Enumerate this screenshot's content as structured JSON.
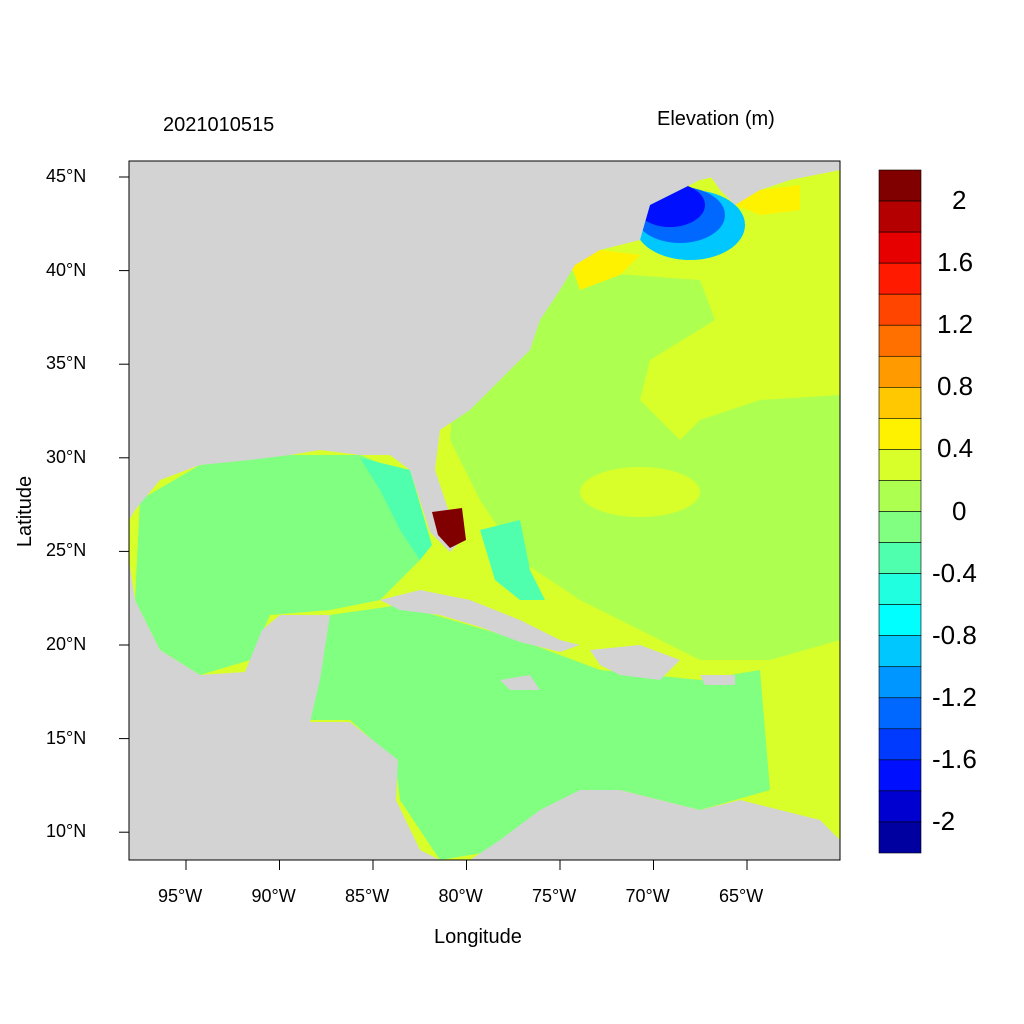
{
  "title_left": "2021010515",
  "title_right": "Elevation (m)",
  "xlabel": "Longitude",
  "ylabel": "Latitude",
  "x_ticks": [
    "95°W",
    "90°W",
    "85°W",
    "80°W",
    "75°W",
    "70°W",
    "65°W"
  ],
  "y_ticks": [
    "45°N",
    "40°N",
    "35°N",
    "30°N",
    "25°N",
    "20°N",
    "15°N",
    "10°N"
  ],
  "colors": {
    "land": "#d3d3d3"
  },
  "colorbar": {
    "labels": [
      "2",
      "1.6",
      "1.2",
      "0.8",
      "0.4",
      "0",
      "-0.4",
      "-0.8",
      "-1.2",
      "-1.6",
      "-2"
    ],
    "colors": [
      "#800000",
      "#b40000",
      "#e60000",
      "#ff1a00",
      "#ff4500",
      "#ff7000",
      "#ff9a00",
      "#ffc800",
      "#fff200",
      "#d9ff2a",
      "#adff50",
      "#80ff80",
      "#50ffad",
      "#20ffe0",
      "#00ffff",
      "#00c8ff",
      "#0096ff",
      "#0068ff",
      "#003aff",
      "#0010ff",
      "#0000d0",
      "#0000a0"
    ]
  }
}
